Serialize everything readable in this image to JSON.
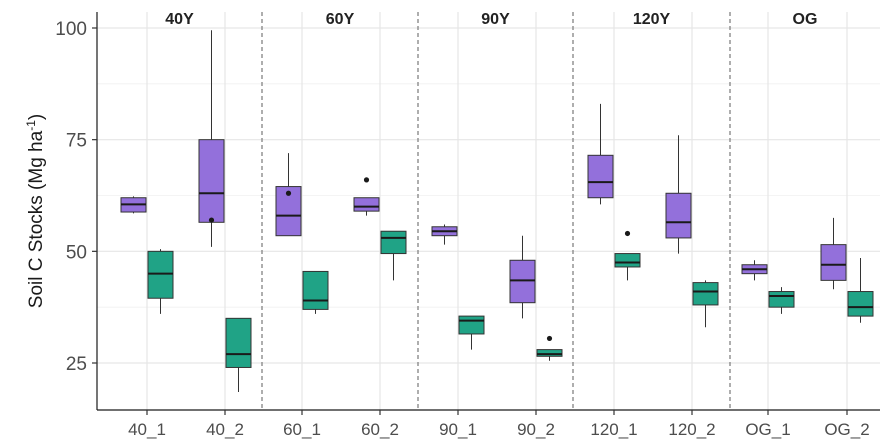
{
  "chart_data": {
    "type": "boxplot",
    "ylabel": "Soil C Stocks (Mg ha",
    "ylabel_sup": "-1",
    "ylabel_close": ")",
    "ylim": [
      17,
      100
    ],
    "yticks": [
      25,
      50,
      75,
      100
    ],
    "grid": true,
    "series_colors": {
      "purple": "#9370DB",
      "green": "#20A386"
    },
    "facets": [
      {
        "label": "40Y",
        "groups": [
          {
            "label": "40_1",
            "boxes": [
              {
                "color": "purple",
                "lower_whisker": 58.5,
                "q1": 58.8,
                "median": 60.5,
                "q3": 62.0,
                "upper_whisker": 62.3,
                "outliers": []
              },
              {
                "color": "green",
                "lower_whisker": 36.0,
                "q1": 39.5,
                "median": 45.0,
                "q3": 50.0,
                "upper_whisker": 50.5,
                "outliers": []
              }
            ]
          },
          {
            "label": "40_2",
            "boxes": [
              {
                "color": "purple",
                "lower_whisker": 51.0,
                "q1": 56.5,
                "median": 63.0,
                "q3": 75.0,
                "upper_whisker": 99.5,
                "outliers": [
                  57.0
                ]
              },
              {
                "color": "green",
                "lower_whisker": 18.5,
                "q1": 24.0,
                "median": 27.0,
                "q3": 35.0,
                "upper_whisker": 35.0,
                "outliers": []
              }
            ]
          }
        ]
      },
      {
        "label": "60Y",
        "groups": [
          {
            "label": "60_1",
            "boxes": [
              {
                "color": "purple",
                "lower_whisker": 53.5,
                "q1": 53.5,
                "median": 58.0,
                "q3": 64.5,
                "upper_whisker": 72.0,
                "outliers": [
                  63.0
                ]
              },
              {
                "color": "green",
                "lower_whisker": 36.0,
                "q1": 37.0,
                "median": 39.0,
                "q3": 45.5,
                "upper_whisker": 45.5,
                "outliers": []
              }
            ]
          },
          {
            "label": "60_2",
            "boxes": [
              {
                "color": "purple",
                "lower_whisker": 58.0,
                "q1": 59.0,
                "median": 60.0,
                "q3": 62.0,
                "upper_whisker": 62.0,
                "outliers": [
                  66.0
                ]
              },
              {
                "color": "green",
                "lower_whisker": 43.5,
                "q1": 49.5,
                "median": 53.0,
                "q3": 54.5,
                "upper_whisker": 54.5,
                "outliers": []
              }
            ]
          }
        ]
      },
      {
        "label": "90Y",
        "groups": [
          {
            "label": "90_1",
            "boxes": [
              {
                "color": "purple",
                "lower_whisker": 51.5,
                "q1": 53.5,
                "median": 54.5,
                "q3": 55.5,
                "upper_whisker": 56.0,
                "outliers": []
              },
              {
                "color": "green",
                "lower_whisker": 28.0,
                "q1": 31.5,
                "median": 34.5,
                "q3": 35.5,
                "upper_whisker": 35.5,
                "outliers": []
              }
            ]
          },
          {
            "label": "90_2",
            "boxes": [
              {
                "color": "purple",
                "lower_whisker": 35.0,
                "q1": 38.5,
                "median": 43.5,
                "q3": 48.0,
                "upper_whisker": 53.5,
                "outliers": []
              },
              {
                "color": "green",
                "lower_whisker": 25.5,
                "q1": 26.5,
                "median": 27.0,
                "q3": 28.0,
                "upper_whisker": 28.0,
                "outliers": [
                  30.5
                ]
              }
            ]
          }
        ]
      },
      {
        "label": "120Y",
        "groups": [
          {
            "label": "120_1",
            "boxes": [
              {
                "color": "purple",
                "lower_whisker": 60.5,
                "q1": 62.0,
                "median": 65.5,
                "q3": 71.5,
                "upper_whisker": 83.0,
                "outliers": []
              },
              {
                "color": "green",
                "lower_whisker": 43.5,
                "q1": 46.5,
                "median": 47.5,
                "q3": 49.5,
                "upper_whisker": 49.5,
                "outliers": [
                  54.0
                ]
              }
            ]
          },
          {
            "label": "120_2",
            "boxes": [
              {
                "color": "purple",
                "lower_whisker": 49.5,
                "q1": 53.0,
                "median": 56.5,
                "q3": 63.0,
                "upper_whisker": 76.0,
                "outliers": []
              },
              {
                "color": "green",
                "lower_whisker": 33.0,
                "q1": 38.0,
                "median": 41.0,
                "q3": 43.0,
                "upper_whisker": 43.5,
                "outliers": []
              }
            ]
          }
        ]
      },
      {
        "label": "OG",
        "groups": [
          {
            "label": "OG_1",
            "boxes": [
              {
                "color": "purple",
                "lower_whisker": 43.5,
                "q1": 45.0,
                "median": 46.0,
                "q3": 47.0,
                "upper_whisker": 48.0,
                "outliers": []
              },
              {
                "color": "green",
                "lower_whisker": 36.0,
                "q1": 37.5,
                "median": 40.0,
                "q3": 41.0,
                "upper_whisker": 42.0,
                "outliers": []
              }
            ]
          },
          {
            "label": "OG_2",
            "boxes": [
              {
                "color": "purple",
                "lower_whisker": 41.5,
                "q1": 43.5,
                "median": 47.0,
                "q3": 51.5,
                "upper_whisker": 57.5,
                "outliers": []
              },
              {
                "color": "green",
                "lower_whisker": 34.0,
                "q1": 35.5,
                "median": 37.5,
                "q3": 41.0,
                "upper_whisker": 48.5,
                "outliers": []
              }
            ]
          }
        ]
      }
    ]
  }
}
